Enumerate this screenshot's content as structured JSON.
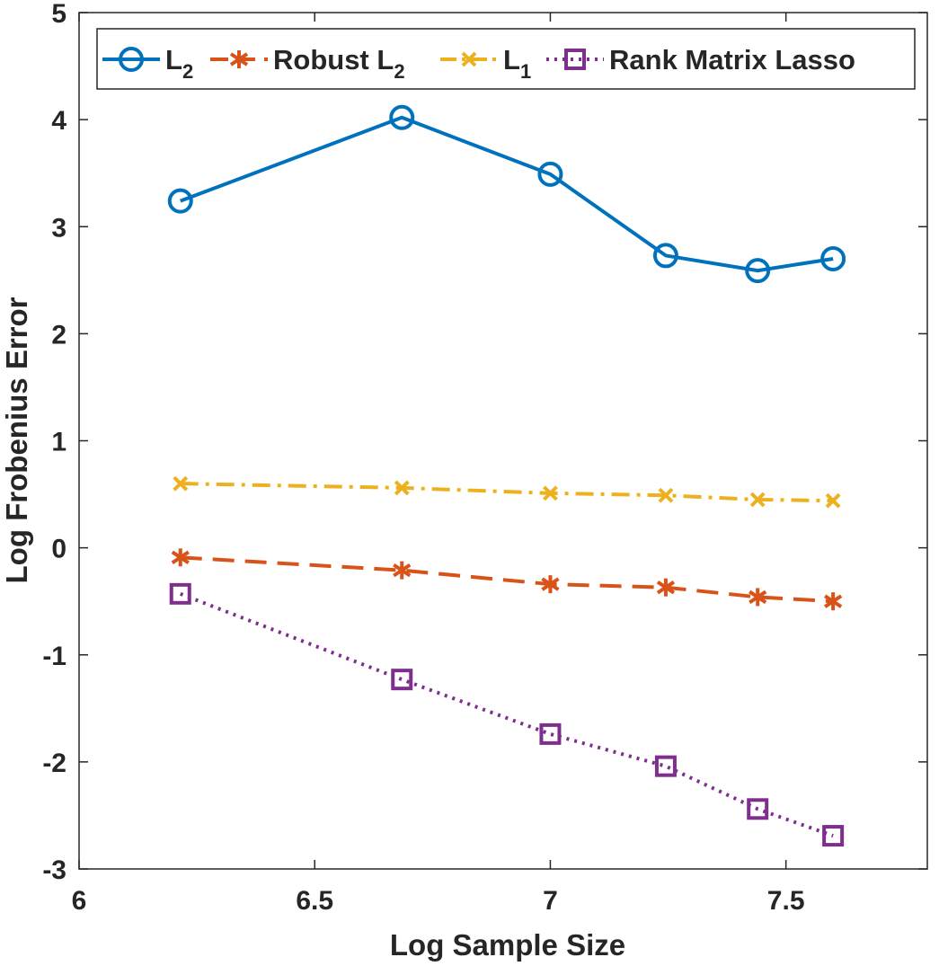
{
  "chart_data": {
    "type": "line",
    "xlabel": "Log Sample Size",
    "ylabel": "Log Frobenius Error",
    "xlim": [
      6,
      7.8
    ],
    "ylim": [
      -3,
      5
    ],
    "xticks": [
      6,
      6.5,
      7,
      7.5
    ],
    "xtick_labels": [
      "6",
      "6.5",
      "7",
      "7.5"
    ],
    "yticks": [
      -3,
      -2,
      -1,
      0,
      1,
      2,
      3,
      4,
      5
    ],
    "ytick_labels": [
      "-3",
      "-2",
      "-1",
      "0",
      "1",
      "2",
      "3",
      "4",
      "5"
    ],
    "x": [
      6.215,
      6.685,
      7.0,
      7.245,
      7.44,
      7.6
    ],
    "grid": false,
    "legend_position": "top",
    "series": [
      {
        "name_main": "L",
        "name_sub": "2",
        "values": [
          3.24,
          4.02,
          3.49,
          2.73,
          2.59,
          2.7
        ],
        "color": "#0072BD",
        "line_style": "solid",
        "marker": "circle"
      },
      {
        "name_main": "Robust L",
        "name_sub": "2",
        "values": [
          -0.09,
          -0.21,
          -0.34,
          -0.37,
          -0.46,
          -0.5
        ],
        "color": "#D95319",
        "line_style": "dashed",
        "marker": "asterisk"
      },
      {
        "name_main": "L",
        "name_sub": "1",
        "values": [
          0.6,
          0.56,
          0.51,
          0.49,
          0.45,
          0.44
        ],
        "color": "#EDB120",
        "line_style": "dashdot",
        "marker": "x"
      },
      {
        "name_main": "Rank Matrix Lasso",
        "name_sub": "",
        "values": [
          -0.43,
          -1.23,
          -1.74,
          -2.04,
          -2.44,
          -2.69
        ],
        "color": "#7E2F8E",
        "line_style": "dotted",
        "marker": "square"
      }
    ]
  }
}
